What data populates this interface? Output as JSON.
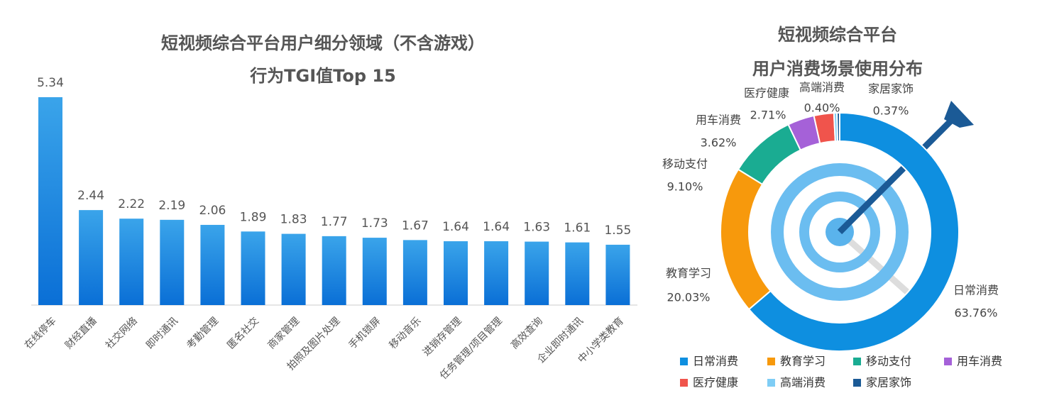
{
  "chart_data": [
    {
      "type": "bar",
      "title": "短视频综合平台用户细分领域（不含游戏）",
      "subtitle": "行为TGI值Top 15",
      "categories": [
        "在线停车",
        "财经直播",
        "社交网络",
        "即时通讯",
        "考勤管理",
        "匿名社交",
        "商家管理",
        "拍照及图片处理",
        "手机锁屏",
        "移动音乐",
        "进销存管理",
        "任务管理/项目管理",
        "高效查询",
        "企业即时通讯",
        "中小学类教育"
      ],
      "values": [
        5.34,
        2.44,
        2.22,
        2.19,
        2.06,
        1.89,
        1.83,
        1.77,
        1.73,
        1.67,
        1.64,
        1.64,
        1.63,
        1.61,
        1.55
      ],
      "color": "#1a86e0"
    },
    {
      "type": "donut",
      "title": "短视频综合平台",
      "subtitle": "用户消费场景使用分布",
      "categories": [
        "日常消费",
        "教育学习",
        "移动支付",
        "用车消费",
        "医疗健康",
        "高端消费",
        "家居家饰"
      ],
      "values": [
        63.76,
        20.03,
        9.1,
        3.62,
        2.71,
        0.4,
        0.37
      ],
      "value_labels": [
        "63.76%",
        "20.03%",
        "9.10%",
        "3.62%",
        "2.71%",
        "0.40%",
        "0.37%"
      ],
      "colors": [
        "#0e8fe0",
        "#f7990c",
        "#1aac92",
        "#a561d8",
        "#f0544c",
        "#7fcdf5",
        "#1b5a96"
      ]
    }
  ]
}
